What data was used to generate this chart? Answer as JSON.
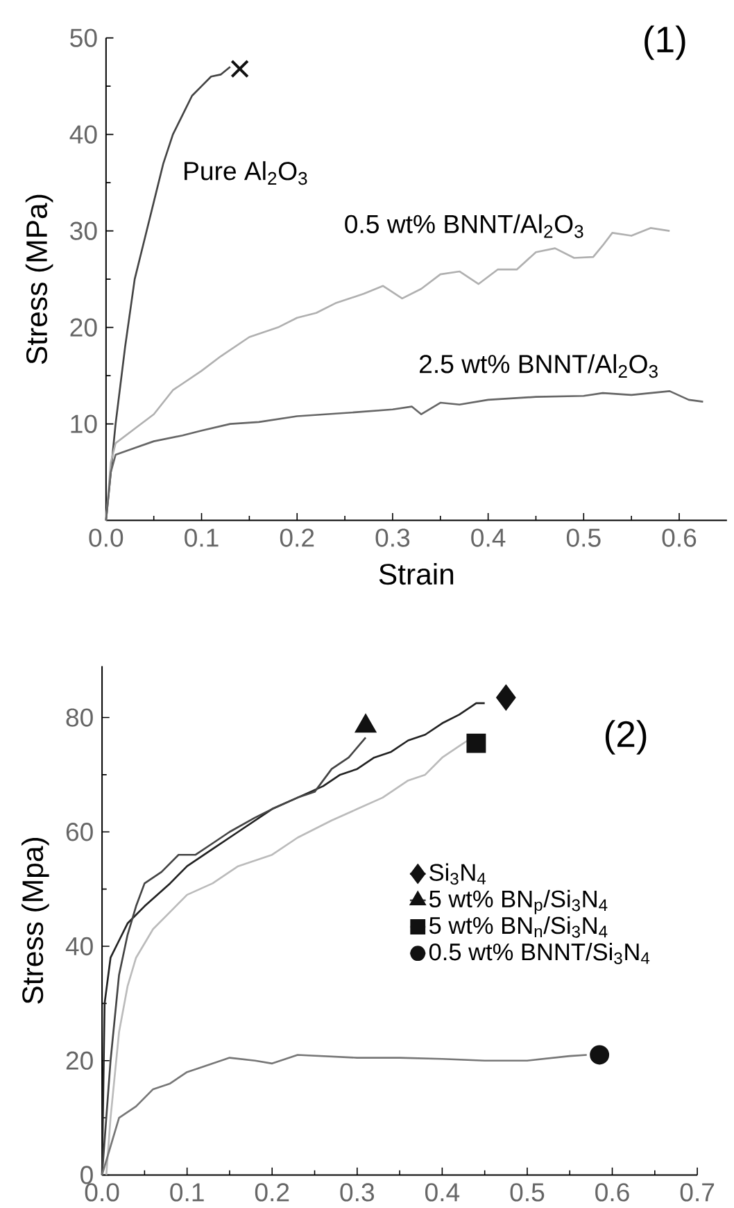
{
  "chart_data": [
    {
      "type": "line",
      "title": "(1)",
      "xlabel": "Strain",
      "ylabel": "Stress (MPa)",
      "xlim": [
        0,
        0.65
      ],
      "ylim": [
        0,
        50
      ],
      "xticks": [
        {
          "value": 0,
          "label": "0.0"
        },
        0.1,
        0.2,
        0.3,
        0.4,
        0.5,
        0.6
      ],
      "yticks": [
        10,
        20,
        30,
        40,
        50
      ],
      "series": [
        {
          "name": "Pure Al$_{2}$O$_{3}$",
          "color": "#444444",
          "x": [
            0,
            0.005,
            0.01,
            0.02,
            0.03,
            0.04,
            0.05,
            0.06,
            0.07,
            0.08,
            0.09,
            0.1,
            0.11,
            0.12,
            0.13
          ],
          "values": [
            0,
            5,
            10,
            18,
            25,
            29,
            33,
            37,
            40,
            42,
            44,
            45,
            46,
            46.2,
            47
          ]
        },
        {
          "name": "0.5 wt% BNNT/Al$_{2}$O$_{3}$",
          "color": "#b0b0b0",
          "x": [
            0,
            0.005,
            0.01,
            0.03,
            0.05,
            0.07,
            0.1,
            0.12,
            0.15,
            0.18,
            0.2,
            0.22,
            0.24,
            0.27,
            0.29,
            0.31,
            0.33,
            0.35,
            0.37,
            0.39,
            0.41,
            0.43,
            0.45,
            0.47,
            0.49,
            0.51,
            0.52,
            0.53,
            0.55,
            0.57,
            0.59
          ],
          "values": [
            0,
            6,
            8,
            9.5,
            11,
            13.5,
            15.5,
            17,
            19,
            20,
            21,
            21.5,
            22.5,
            23.5,
            24.3,
            23,
            24,
            25.5,
            25.8,
            24.5,
            26,
            26,
            27.8,
            28.2,
            27.2,
            27.3,
            28.5,
            29.8,
            29.5,
            30.3,
            30
          ]
        },
        {
          "name": "2.5 wt% BNNT/Al$_{2}$O$_{3}$",
          "color": "#666666",
          "x": [
            0,
            0.005,
            0.01,
            0.03,
            0.05,
            0.08,
            0.1,
            0.13,
            0.16,
            0.2,
            0.23,
            0.26,
            0.3,
            0.32,
            0.33,
            0.35,
            0.37,
            0.4,
            0.45,
            0.5,
            0.52,
            0.55,
            0.59,
            0.61,
            0.625
          ],
          "values": [
            0,
            5,
            6.8,
            7.5,
            8.2,
            8.8,
            9.3,
            10,
            10.2,
            10.8,
            11,
            11.2,
            11.5,
            11.8,
            11,
            12.2,
            12,
            12.5,
            12.8,
            12.9,
            13.2,
            13,
            13.4,
            12.5,
            12.3
          ]
        },
        {
          "type": "scatter",
          "marker": "cross",
          "color": "#111111",
          "x": [
            0.14
          ],
          "values": [
            46.8
          ]
        }
      ]
    },
    {
      "type": "line",
      "title": "(2)",
      "ylabel": "Stress (Mpa)",
      "legend": "right",
      "xlim": [
        0,
        0.7
      ],
      "ylim": [
        0,
        89
      ],
      "xticks": [
        {
          "value": 0,
          "label": "0.0"
        },
        0.1,
        0.2,
        0.3,
        0.4,
        0.5,
        0.6,
        0.7
      ],
      "yticks": [
        0,
        20,
        40,
        60,
        80
      ],
      "series": [
        {
          "name": "Si$_{3}$N$_{4}$",
          "color": "#222222",
          "x": [
            0,
            0.003,
            0.01,
            0.02,
            0.03,
            0.05,
            0.08,
            0.1,
            0.13,
            0.16,
            0.2,
            0.23,
            0.26,
            0.28,
            0.3,
            0.32,
            0.34,
            0.36,
            0.38,
            0.4,
            0.42,
            0.44,
            0.45
          ],
          "values": [
            0,
            30,
            38,
            41,
            44,
            47,
            51,
            54,
            57,
            60,
            64,
            66,
            68,
            70,
            71,
            73,
            74,
            76,
            77,
            79,
            80.5,
            82.5,
            82.5
          ]
        },
        {
          "name": "5 wt% BN$_{p}$/Si$_{3}$N$_{4}$",
          "color": "#444444",
          "x": [
            0,
            0.01,
            0.02,
            0.03,
            0.04,
            0.05,
            0.07,
            0.09,
            0.11,
            0.13,
            0.15,
            0.18,
            0.2,
            0.23,
            0.25,
            0.27,
            0.29,
            0.31
          ],
          "values": [
            0,
            20,
            35,
            42,
            47,
            51,
            53,
            56,
            56,
            58,
            60,
            62.5,
            64,
            66,
            67,
            71,
            73,
            76.5
          ]
        },
        {
          "name": "5 wt% BN$_{n}$/Si$_{3}$N$_{4}$",
          "color": "#bbbbbb",
          "x": [
            0.005,
            0.01,
            0.02,
            0.03,
            0.04,
            0.06,
            0.08,
            0.1,
            0.13,
            0.16,
            0.2,
            0.23,
            0.27,
            0.3,
            0.33,
            0.36,
            0.38,
            0.4,
            0.42,
            0.43
          ],
          "values": [
            0,
            10,
            25,
            33,
            38,
            43,
            46,
            49,
            51,
            54,
            56,
            59,
            62,
            64,
            66,
            69,
            70,
            73,
            75,
            76
          ]
        },
        {
          "name": "0.5 wt% BNNT/Si$_{3}$N$_{4}$",
          "color": "#777777",
          "x": [
            0,
            0.01,
            0.02,
            0.04,
            0.06,
            0.08,
            0.1,
            0.12,
            0.15,
            0.18,
            0.2,
            0.23,
            0.3,
            0.35,
            0.4,
            0.45,
            0.5,
            0.55,
            0.57
          ],
          "values": [
            0,
            5,
            10,
            12,
            15,
            16,
            18,
            19,
            20.5,
            20,
            19.5,
            21,
            20.5,
            20.5,
            20.3,
            20,
            20,
            20.8,
            21
          ]
        },
        {
          "type": "scatter",
          "marker": "diamond",
          "color": "#111111",
          "x": [
            0.475
          ],
          "values": [
            83.5
          ]
        },
        {
          "type": "scatter",
          "marker": "triangle",
          "color": "#111111",
          "x": [
            0.31
          ],
          "values": [
            78.5
          ]
        },
        {
          "type": "scatter",
          "marker": "square",
          "color": "#111111",
          "x": [
            0.44
          ],
          "values": [
            75.5
          ]
        },
        {
          "type": "scatter",
          "marker": "circle",
          "color": "#111111",
          "x": [
            0.585
          ],
          "values": [
            21
          ]
        }
      ]
    }
  ]
}
